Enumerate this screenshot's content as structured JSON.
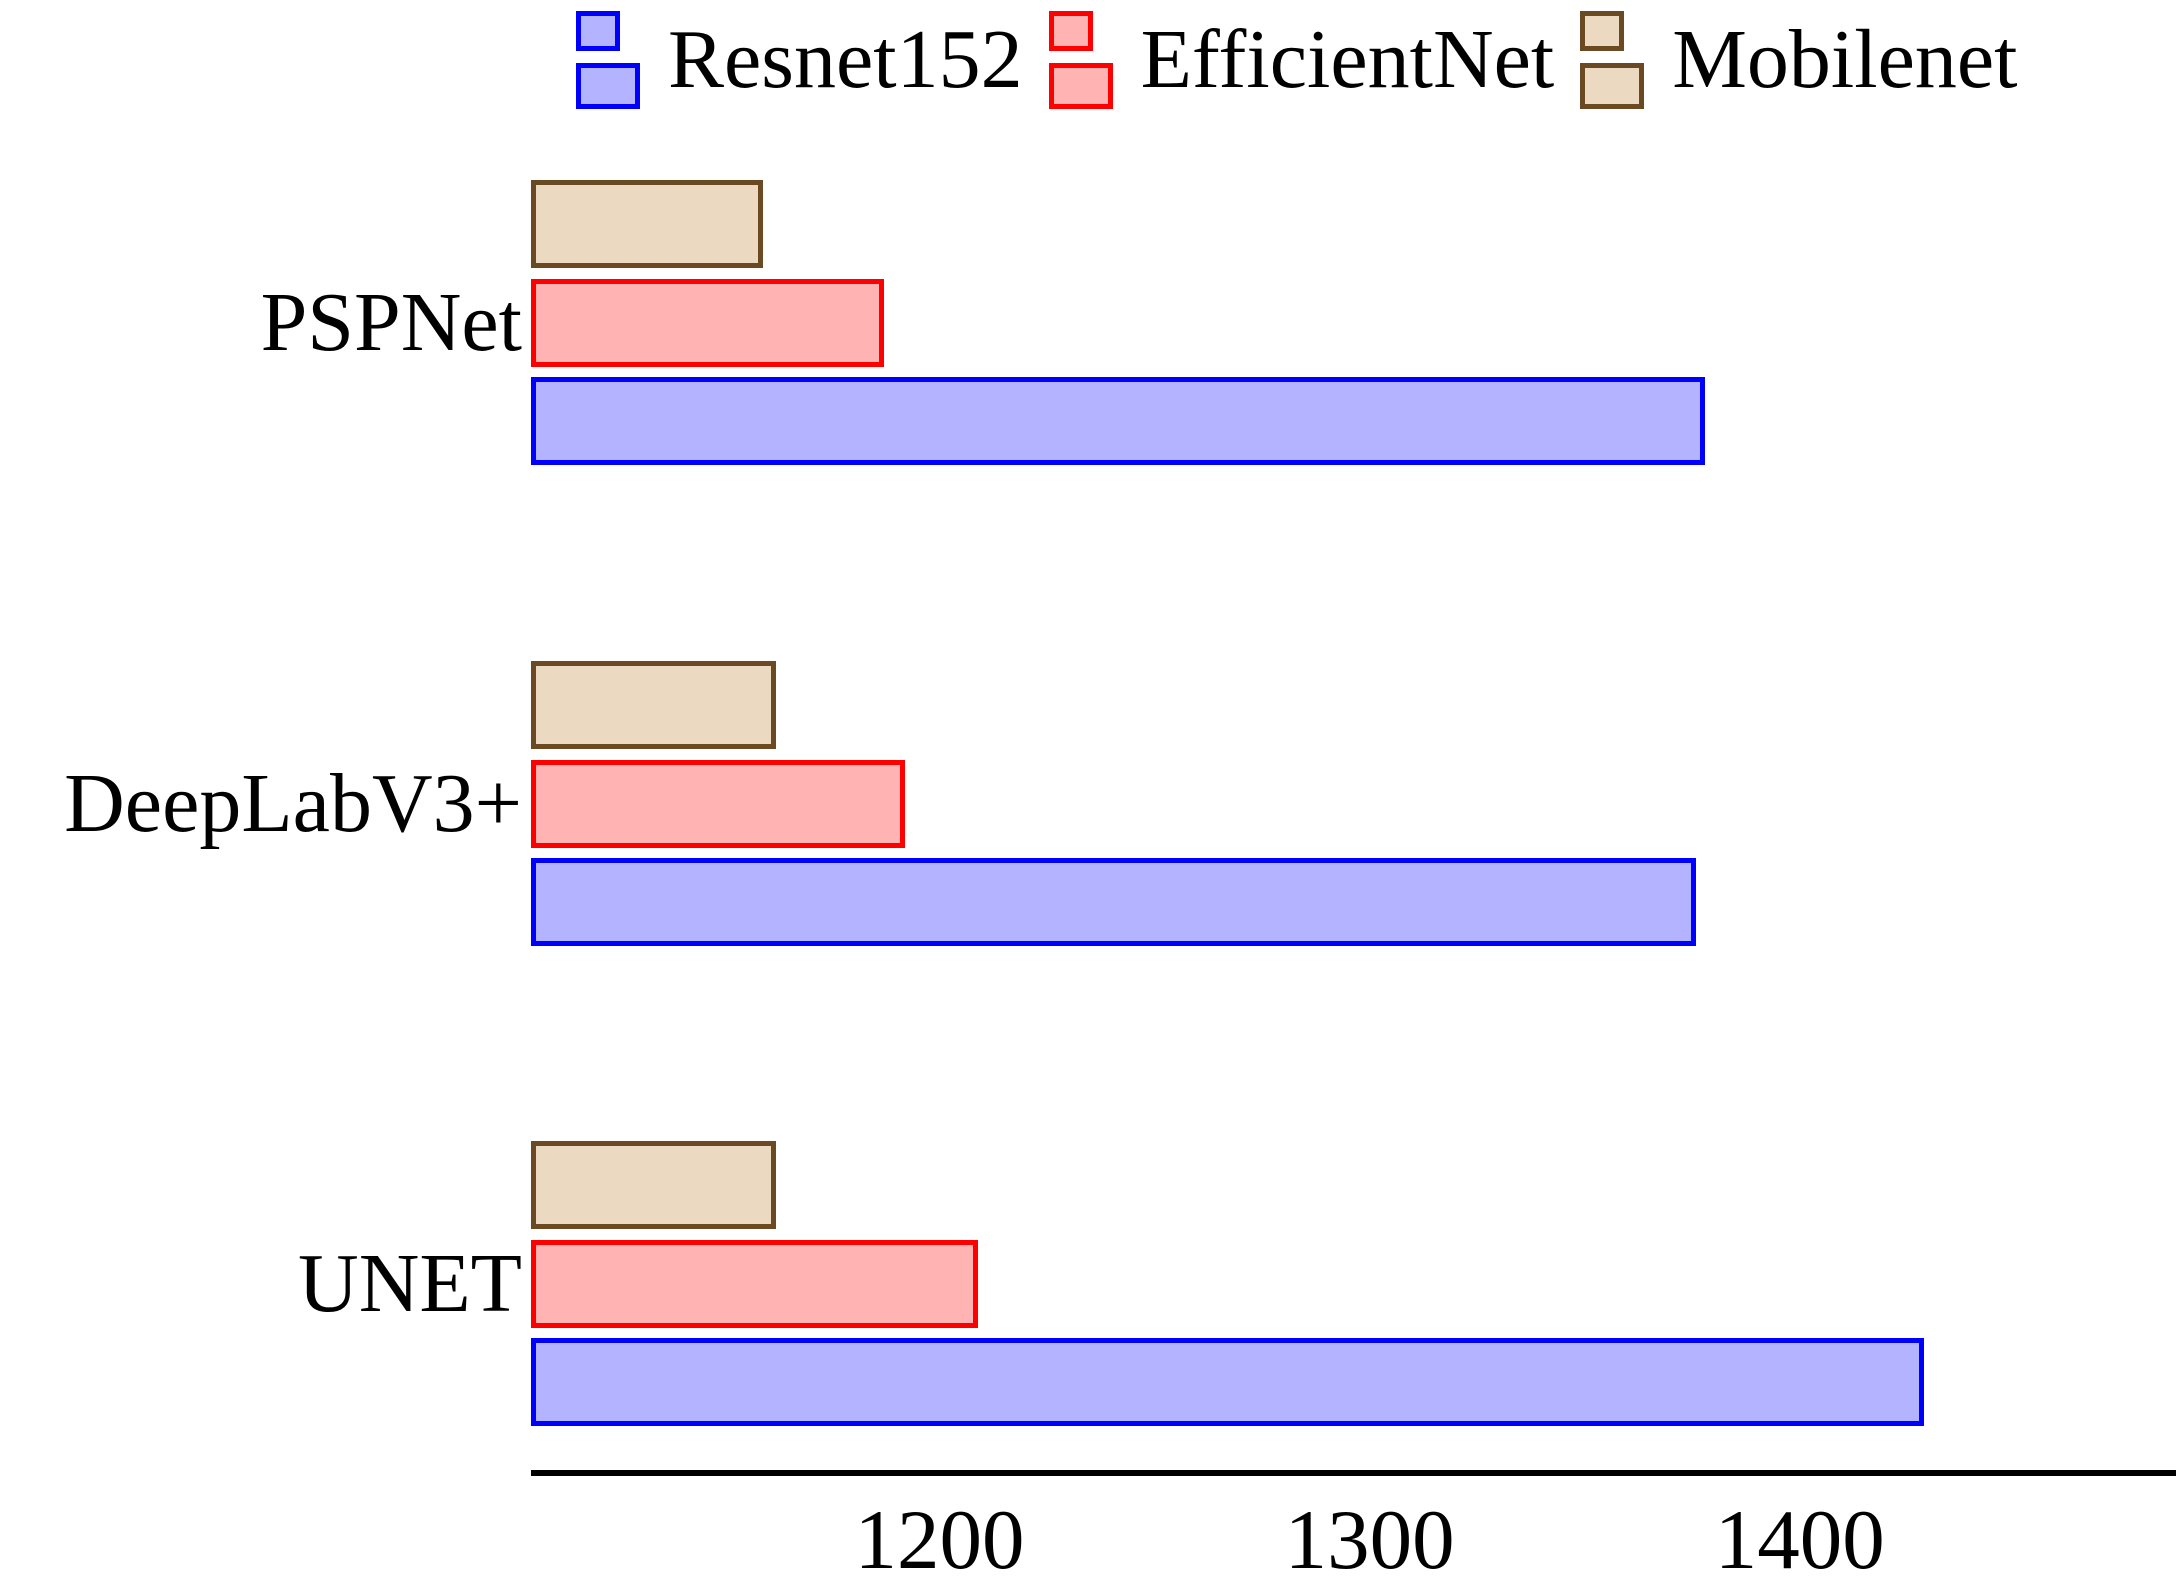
{
  "page": {
    "background": "#ffffff"
  },
  "legend": {
    "position": "top",
    "items": [
      {
        "label": "Resnet152",
        "border_color": "#0000ff",
        "fill_color": "#b3b3ff"
      },
      {
        "label": "EfficientNet",
        "border_color": "#ff0000",
        "fill_color": "#ffb3b3"
      },
      {
        "label": "Mobilenet",
        "border_color": "#6b4923",
        "fill_color": "#ecd9c2"
      }
    ]
  },
  "chart_data": {
    "type": "bar",
    "orientation": "horizontal",
    "title": "",
    "xlabel": "",
    "ylabel": "",
    "categories": [
      "PSPNet",
      "DeepLabV3+",
      "UNET"
    ],
    "series": [
      {
        "name": "Resnet152",
        "border_color": "#0000ff",
        "fill_color": "#b3b3ff",
        "values": [
          1378,
          1376,
          1429
        ]
      },
      {
        "name": "EfficientNet",
        "border_color": "#ff0000",
        "fill_color": "#ffb3b3",
        "values": [
          1187,
          1192,
          1209
        ]
      },
      {
        "name": "Mobilenet",
        "border_color": "#6b4923",
        "fill_color": "#ecd9c2",
        "values": [
          1159,
          1162,
          1162
        ]
      }
    ],
    "bar_order_top_to_bottom": [
      "Mobilenet",
      "EfficientNet",
      "Resnet152"
    ],
    "x_ticks": [
      {
        "value": 1200,
        "label": "1200"
      },
      {
        "value": 1300,
        "label": "1300"
      },
      {
        "value": 1400,
        "label": "1400"
      }
    ],
    "xlim": [
      1105,
      1487.5
    ],
    "grid": false,
    "legend_position": "top"
  }
}
